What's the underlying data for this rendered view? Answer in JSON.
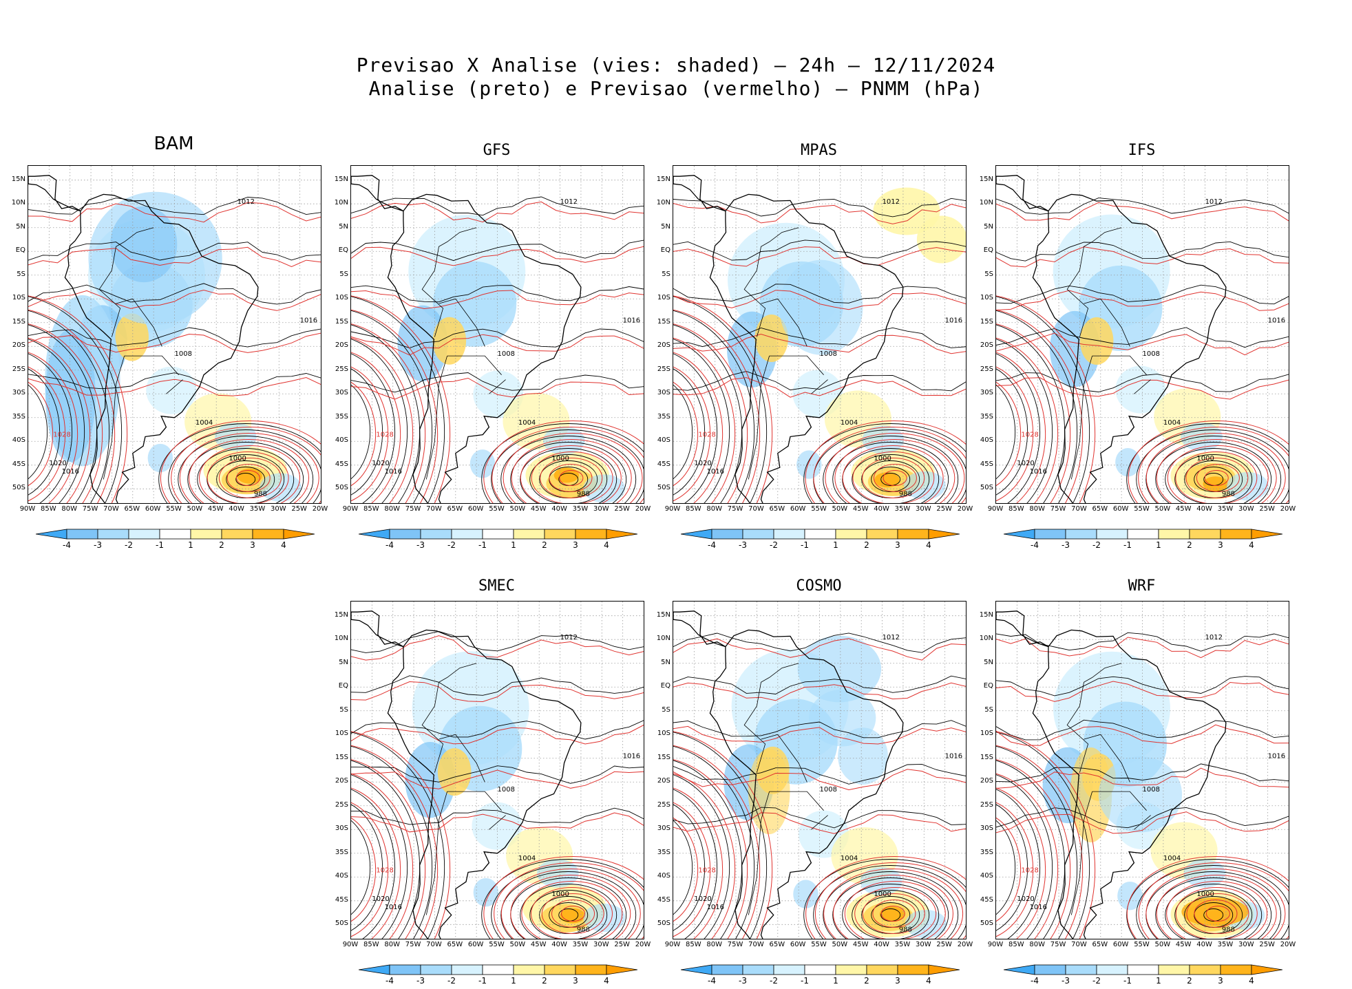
{
  "title": {
    "line1": "Previsao X Analise (vies: shaded) — 24h — 12/11/2024",
    "line2": "Analise (preto) e Previsao (vermelho) — PNMM (hPa)"
  },
  "lat_labels": [
    "15N",
    "10N",
    "5N",
    "EQ",
    "5S",
    "10S",
    "15S",
    "20S",
    "25S",
    "30S",
    "35S",
    "40S",
    "45S",
    "50S"
  ],
  "lon_labels": [
    "90W",
    "85W",
    "80W",
    "75W",
    "70W",
    "65W",
    "60W",
    "55W",
    "50W",
    "45W",
    "40W",
    "35W",
    "30W",
    "25W",
    "20W"
  ],
  "colorbar_labels": [
    "-4",
    "-3",
    "-2",
    "-1",
    "1",
    "2",
    "3",
    "4"
  ],
  "colorbar_colors": [
    "#3fa9f5",
    "#7fc4f7",
    "#a9dcfb",
    "#d7f2fe",
    "#ffffff",
    "#fff6a8",
    "#ffd75e",
    "#ffb41c",
    "#ff9d00"
  ],
  "colors": {
    "analysis": "#000000",
    "forecast": "#e0322e",
    "coast": "#000000"
  },
  "isobar_labels": {
    "high_west": "1028",
    "mid_west": "1020",
    "south_west": "1016",
    "north": "1012",
    "east": "1016",
    "low_center": "988",
    "ring_low": "1000",
    "inland": "1008",
    "coast_low": "1004"
  },
  "panels": [
    {
      "name": "BAM"
    },
    {
      "name": "GFS"
    },
    {
      "name": "MPAS"
    },
    {
      "name": "IFS"
    },
    {
      "name": "SMEC"
    },
    {
      "name": "COSMO"
    },
    {
      "name": "WRF"
    }
  ]
}
